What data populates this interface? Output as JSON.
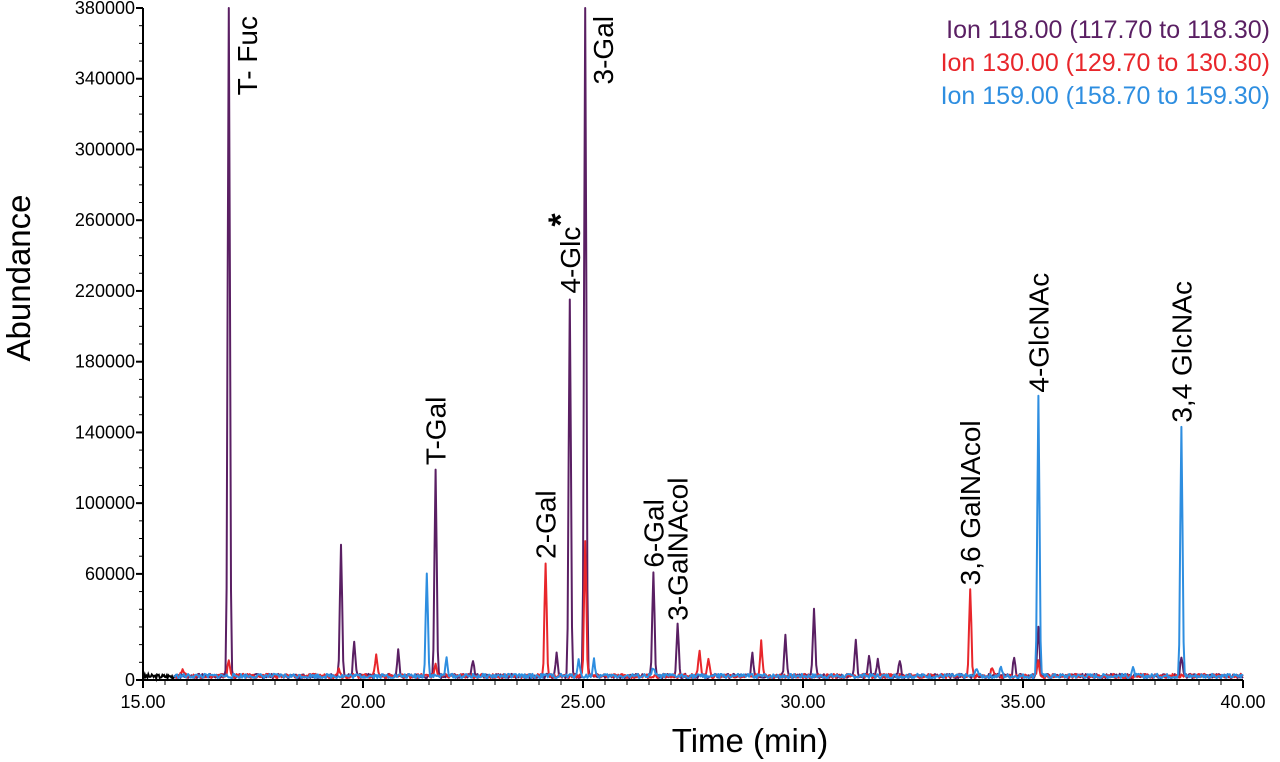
{
  "chart_data": {
    "type": "line",
    "xlabel": "Time (min)",
    "ylabel": "Abundance",
    "xlim": [
      15.0,
      40.0
    ],
    "ylim": [
      0,
      380000
    ],
    "x_ticks": [
      "15.00",
      "20.00",
      "25.00",
      "30.00",
      "35.00",
      "40.00"
    ],
    "y_ticks": [
      "0",
      "60000",
      "100000",
      "140000",
      "180000",
      "220000",
      "260000",
      "300000",
      "340000",
      "380000"
    ],
    "legend_position": "top-right",
    "series": [
      {
        "name": "Ion 118.00 (117.70 to 118.30)",
        "color": "#5a1f63",
        "baseline": 1000,
        "peaks": [
          [
            16.95,
            380000
          ],
          [
            19.5,
            75000
          ],
          [
            19.8,
            19000
          ],
          [
            20.8,
            14000
          ],
          [
            21.65,
            117000
          ],
          [
            22.5,
            9000
          ],
          [
            24.4,
            13000
          ],
          [
            24.7,
            214000
          ],
          [
            25.05,
            380000
          ],
          [
            26.6,
            59000
          ],
          [
            27.15,
            29000
          ],
          [
            28.85,
            12000
          ],
          [
            29.6,
            23000
          ],
          [
            30.25,
            39000
          ],
          [
            31.2,
            21000
          ],
          [
            31.5,
            11000
          ],
          [
            31.7,
            10000
          ],
          [
            32.2,
            8000
          ],
          [
            34.8,
            11000
          ],
          [
            35.35,
            29000
          ],
          [
            38.6,
            11000
          ]
        ]
      },
      {
        "name": "Ion 130.00 (129.70 to 130.30)",
        "color": "#e8262b",
        "baseline": 1000,
        "peaks": [
          [
            15.9,
            5000
          ],
          [
            16.95,
            9000
          ],
          [
            19.45,
            5000
          ],
          [
            20.3,
            13000
          ],
          [
            21.65,
            7000
          ],
          [
            24.15,
            64000
          ],
          [
            25.05,
            77000
          ],
          [
            27.65,
            15000
          ],
          [
            27.85,
            9000
          ],
          [
            29.05,
            19000
          ],
          [
            33.8,
            49000
          ],
          [
            34.3,
            5000
          ],
          [
            35.35,
            8000
          ]
        ]
      },
      {
        "name": "Ion 159.00 (158.70 to 159.30)",
        "color": "#2e8ee0",
        "baseline": 1000,
        "peaks": [
          [
            21.45,
            58000
          ],
          [
            21.9,
            10000
          ],
          [
            24.9,
            10000
          ],
          [
            25.25,
            9000
          ],
          [
            26.6,
            5000
          ],
          [
            33.95,
            5000
          ],
          [
            34.5,
            5000
          ],
          [
            35.35,
            158000
          ],
          [
            37.5,
            4000
          ],
          [
            38.6,
            141000
          ]
        ]
      }
    ],
    "annotations": [
      {
        "text": "T- Fuc",
        "x": 16.95,
        "y": 380000
      },
      {
        "text": "T-Gal",
        "x": 21.65,
        "y": 117000
      },
      {
        "text": "2-Gal",
        "x": 24.15,
        "y": 64000
      },
      {
        "text": "4-Glc*",
        "x": 24.7,
        "y": 214000
      },
      {
        "text": "3-Gal",
        "x": 25.05,
        "y": 380000
      },
      {
        "text": "6-Gal",
        "x": 26.6,
        "y": 59000
      },
      {
        "text": "3-GalNAcol",
        "x": 27.15,
        "y": 29000
      },
      {
        "text": "3,6 GalNAcol",
        "x": 33.8,
        "y": 49000
      },
      {
        "text": "4-GlcNAc",
        "x": 35.35,
        "y": 158000
      },
      {
        "text": "3,4 GlcNAc",
        "x": 38.6,
        "y": 141000
      }
    ]
  }
}
